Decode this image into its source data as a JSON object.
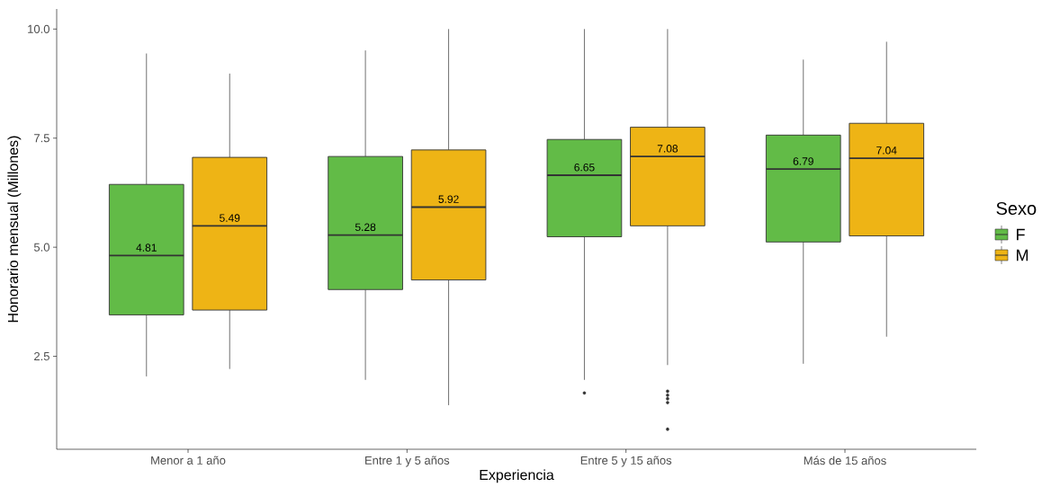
{
  "chart_data": {
    "type": "box",
    "xlabel": "Experiencia",
    "ylabel": "Honorario mensual (Millones)",
    "legend_title": "Sexo",
    "legend": "right",
    "categories": [
      "Menor a 1 año",
      "Entre 1 y 5 años",
      "Entre 5 y 15 años",
      "Más de 15 años"
    ],
    "ylim": [
      0.37,
      10.46
    ],
    "yticks": [
      {
        "value": 2.5,
        "label": "2.5"
      },
      {
        "value": 5,
        "label": "5.0"
      },
      {
        "value": 7.5,
        "label": "7.5"
      },
      {
        "value": 10,
        "label": "10.0"
      }
    ],
    "series": [
      {
        "name": "F",
        "color": "#62bb47",
        "value_labels": [
          "4.81",
          "5.28",
          "6.65",
          "6.79"
        ],
        "boxes": [
          {
            "low": 2.04,
            "q1": 3.45,
            "median": 4.81,
            "q3": 6.44,
            "high": 9.44
          },
          {
            "low": 1.96,
            "q1": 4.03,
            "median": 5.28,
            "q3": 7.08,
            "high": 9.51
          },
          {
            "low": 1.96,
            "q1": 5.24,
            "median": 6.65,
            "q3": 7.47,
            "high": 10.0,
            "outliers": [
              1.66
            ]
          },
          {
            "low": 2.33,
            "q1": 5.12,
            "median": 6.79,
            "q3": 7.57,
            "high": 9.3
          }
        ]
      },
      {
        "name": "M",
        "color": "#eeb415",
        "value_labels": [
          "5.49",
          "5.92",
          "7.08",
          "7.04"
        ],
        "boxes": [
          {
            "low": 2.21,
            "q1": 3.56,
            "median": 5.49,
            "q3": 7.06,
            "high": 8.98
          },
          {
            "low": 1.38,
            "q1": 4.25,
            "median": 5.92,
            "q3": 7.23,
            "high": 10.0
          },
          {
            "low": 2.3,
            "q1": 5.49,
            "median": 7.08,
            "q3": 7.75,
            "high": 10.0,
            "outliers": [
              1.7,
              1.61,
              1.53,
              1.44,
              0.83
            ]
          },
          {
            "low": 2.95,
            "q1": 5.26,
            "median": 7.04,
            "q3": 7.84,
            "high": 9.71
          }
        ]
      }
    ]
  }
}
